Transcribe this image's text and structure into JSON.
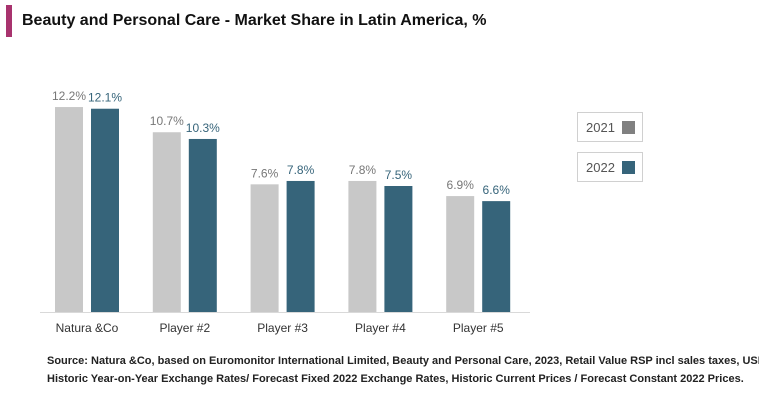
{
  "chart_data": {
    "type": "bar",
    "title": "Beauty and Personal Care - Market Share in Latin America, %",
    "categories": [
      "Natura &Co",
      "Player #2",
      "Player #3",
      "Player #4",
      "Player #5"
    ],
    "series": [
      {
        "name": "2021",
        "values": [
          12.2,
          10.7,
          7.6,
          7.8,
          6.9
        ],
        "labels": [
          "12.2%",
          "10.7%",
          "7.6%",
          "7.8%",
          "6.9%"
        ],
        "color": "#c8c8c8",
        "legend_color": "#808080",
        "label_color": "#777777"
      },
      {
        "name": "2022",
        "values": [
          12.1,
          10.3,
          7.8,
          7.5,
          6.6
        ],
        "labels": [
          "12.1%",
          "10.3%",
          "7.8%",
          "7.5%",
          "6.6%"
        ],
        "color": "#36647a",
        "legend_color": "#36647a",
        "label_color": "#36647a"
      }
    ],
    "ylim": [
      0,
      13
    ],
    "grid": false,
    "legend_position": "right",
    "xlabel": "",
    "ylabel": ""
  },
  "source": {
    "line1": "Source: Natura &Co, based on Euromonitor International Limited, Beauty and Personal Care, 2023, Retail Value RSP incl sales taxes, USD,",
    "line2": "Historic Year-on-Year Exchange Rates/ Forecast Fixed 2022 Exchange Rates, Historic Current Prices / Forecast Constant 2022 Prices."
  },
  "accent_color": "#a8336e"
}
